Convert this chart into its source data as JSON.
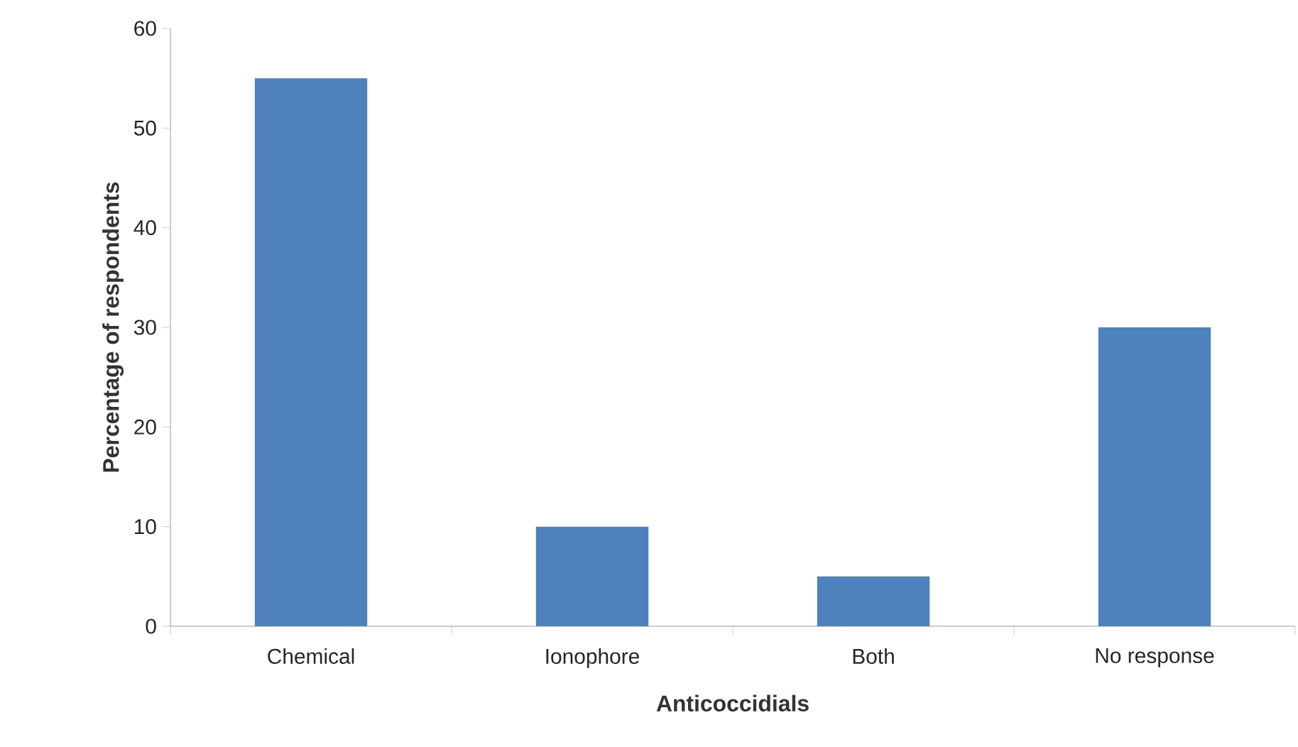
{
  "chart_data": {
    "type": "bar",
    "xlabel": "Anticoccidials",
    "ylabel": "Percentage of respondents",
    "categories": [
      "Chemical",
      "Ionophore",
      "Both",
      "No response"
    ],
    "values": [
      55,
      10,
      5,
      30
    ],
    "color": "#4f81bd",
    "ylim": [
      0,
      60
    ],
    "yticks": [
      0,
      10,
      20,
      30,
      40,
      50,
      60
    ]
  }
}
